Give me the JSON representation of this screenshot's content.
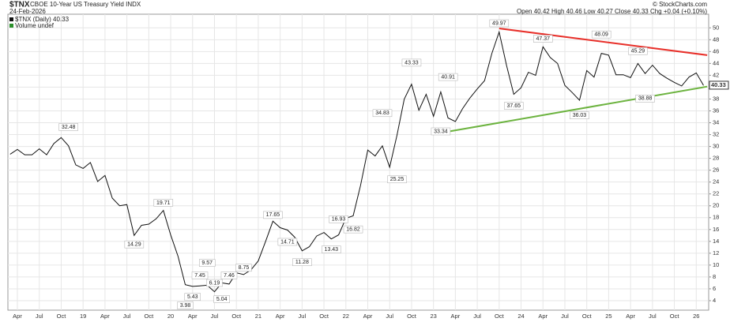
{
  "chart_data": {
    "type": "line",
    "symbol": "$TNX",
    "title": "CBOE 10-Year US Treasury Yield INDX",
    "date": "24-Feb-2026",
    "quote": "Open 40.42  High 40.46  Low 40.27  Close 40.33  Chg +0.04 (+0.10%)",
    "legend_price": "$TNX (Daily) 40.33",
    "legend_volume": "Volume undef",
    "credit": "© StockCharts.com",
    "last_value": 40.33,
    "categories": [
      null,
      "Apr",
      null,
      null,
      "Jul",
      null,
      null,
      "Oct",
      null,
      null,
      "19",
      null,
      null,
      "Apr",
      null,
      null,
      "Jul",
      null,
      null,
      "Oct",
      null,
      null,
      "20",
      null,
      null,
      "Apr",
      null,
      null,
      "Jul",
      null,
      null,
      "Oct",
      null,
      null,
      "21",
      null,
      null,
      "Apr",
      null,
      null,
      "Jul",
      null,
      null,
      "Oct",
      null,
      null,
      "22",
      null,
      null,
      "Apr",
      null,
      null,
      "Jul",
      null,
      null,
      "Oct",
      null,
      null,
      "23",
      null,
      null,
      "Apr",
      null,
      null,
      "Jul",
      null,
      null,
      "Oct",
      null,
      null,
      "24",
      null,
      null,
      "Apr",
      null,
      null,
      "Jul",
      null,
      null,
      "Oct",
      null,
      null,
      "25",
      null,
      null,
      "Apr",
      null,
      null,
      "Jul",
      null,
      null,
      "Oct",
      null,
      null,
      "26",
      null
    ],
    "series": [
      {
        "name": "$TNX",
        "color": "#111111",
        "values": [
          28.7,
          29.5,
          28.6,
          28.6,
          29.6,
          28.6,
          30.5,
          31.5,
          30.1,
          26.9,
          26.3,
          27.3,
          24.1,
          25.1,
          21.3,
          20.0,
          20.2,
          15.0,
          16.7,
          16.9,
          17.8,
          19.2,
          15.1,
          11.5,
          6.7,
          6.4,
          6.5,
          6.6,
          5.5,
          7.0,
          6.8,
          8.7,
          8.4,
          9.2,
          10.7,
          14.0,
          17.4,
          16.3,
          15.9,
          14.7,
          12.4,
          13.1,
          14.9,
          15.5,
          14.4,
          15.1,
          17.9,
          18.3,
          23.4,
          29.4,
          28.4,
          30.1,
          26.5,
          31.9,
          38.0,
          40.5,
          36.1,
          38.8,
          35.1,
          39.2,
          34.8,
          34.2,
          36.4,
          38.2,
          39.7,
          41.1,
          45.7,
          49.3,
          43.7,
          38.8,
          39.9,
          42.5,
          42.0,
          46.8,
          45.0,
          44.0,
          40.3,
          39.1,
          37.8,
          42.8,
          41.7,
          45.7,
          45.4,
          42.1,
          42.1,
          41.6,
          44.0,
          42.3,
          43.7,
          42.3,
          41.5,
          40.8,
          40.2,
          41.7,
          42.4,
          40.3
        ]
      }
    ],
    "annotations": [
      {
        "label": "32.48",
        "value": 32.48,
        "at": 8
      },
      {
        "label": "14.29",
        "value": 14.29,
        "at": 17
      },
      {
        "label": "19.71",
        "value": 19.71,
        "at": 21
      },
      {
        "label": "3.98",
        "value": 3.98,
        "at": 24
      },
      {
        "label": "5.43",
        "value": 5.43,
        "at": 25
      },
      {
        "label": "7.45",
        "value": 7.45,
        "at": 26
      },
      {
        "label": "9.57",
        "value": 9.57,
        "at": 27
      },
      {
        "label": "6.19",
        "value": 6.19,
        "at": 28
      },
      {
        "label": "5.04",
        "value": 5.04,
        "at": 29
      },
      {
        "label": "7.46",
        "value": 7.46,
        "at": 30
      },
      {
        "label": "8.75",
        "value": 8.75,
        "at": 32
      },
      {
        "label": "17.65",
        "value": 17.65,
        "at": 36
      },
      {
        "label": "14.71",
        "value": 14.71,
        "at": 38
      },
      {
        "label": "11.28",
        "value": 11.28,
        "at": 40
      },
      {
        "label": "16.93",
        "value": 16.93,
        "at": 45
      },
      {
        "label": "13.43",
        "value": 13.43,
        "at": 44
      },
      {
        "label": "16.82",
        "value": 16.82,
        "at": 47
      },
      {
        "label": "34.83",
        "value": 34.83,
        "at": 51
      },
      {
        "label": "25.25",
        "value": 25.25,
        "at": 53
      },
      {
        "label": "43.33",
        "value": 43.33,
        "at": 55
      },
      {
        "label": "33.34",
        "value": 33.34,
        "at": 59
      },
      {
        "label": "40.91",
        "value": 40.91,
        "at": 60
      },
      {
        "label": "49.97",
        "value": 49.97,
        "at": 67
      },
      {
        "label": "37.65",
        "value": 37.65,
        "at": 69
      },
      {
        "label": "47.37",
        "value": 47.37,
        "at": 73
      },
      {
        "label": "36.03",
        "value": 36.03,
        "at": 78
      },
      {
        "label": "48.09",
        "value": 48.09,
        "at": 81
      },
      {
        "label": "45.29",
        "value": 45.29,
        "at": 86
      },
      {
        "label": "38.88",
        "value": 38.88,
        "at": 87
      }
    ],
    "trendlines": [
      {
        "color": "#e8302a",
        "x": [
          67,
          95.5
        ],
        "values": [
          49.9,
          45.4
        ]
      },
      {
        "color": "#6cb33f",
        "x": [
          60,
          95.5
        ],
        "values": [
          32.5,
          40.1
        ]
      }
    ],
    "ylim": [
      2.4,
      52.3
    ],
    "yticks": [
      4,
      6,
      8,
      10,
      12,
      14,
      16,
      18,
      20,
      22,
      24,
      26,
      28,
      30,
      32,
      34,
      36,
      38,
      40,
      42,
      44,
      46,
      48,
      50
    ],
    "grid": true
  }
}
